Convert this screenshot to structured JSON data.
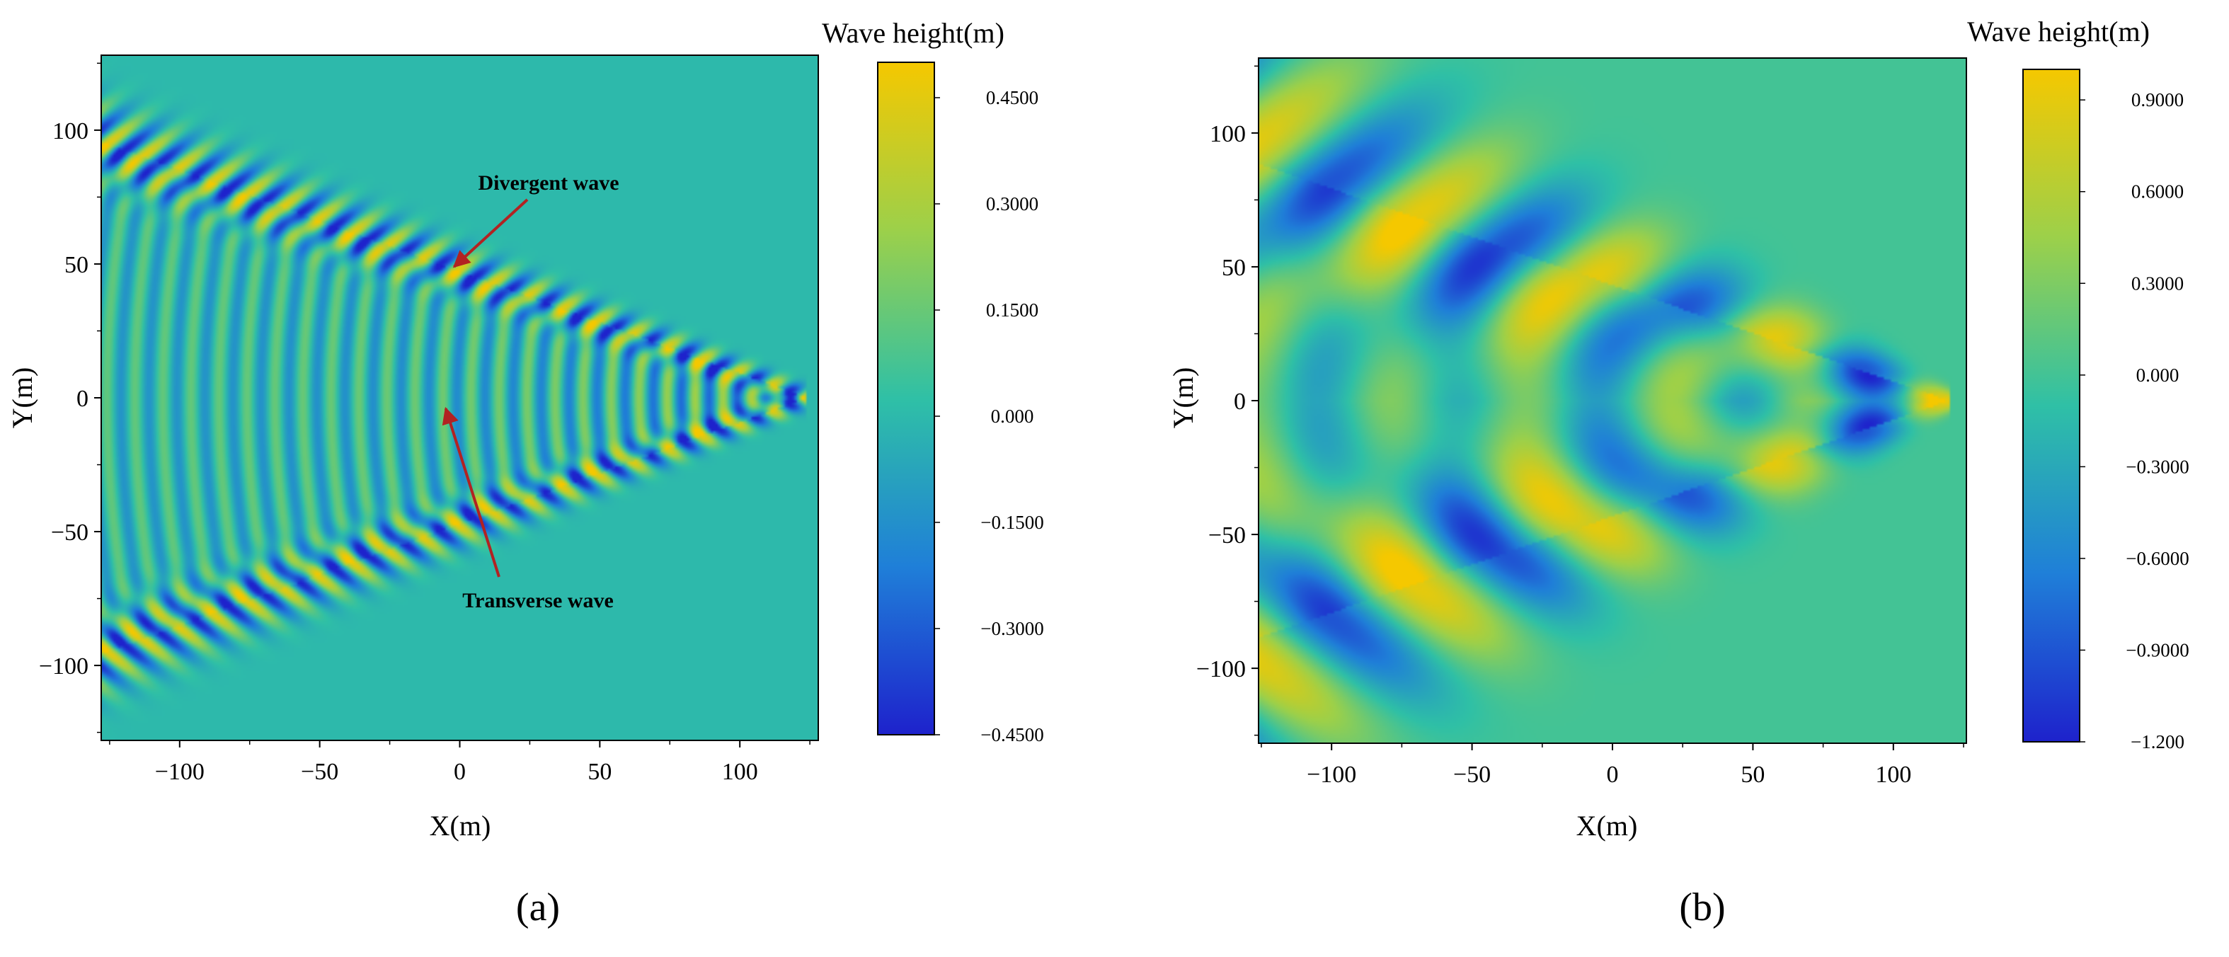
{
  "chart_data": [
    {
      "type": "heatmap",
      "panel_label": "(a)",
      "xlabel": "X(m)",
      "ylabel": "Y(m)",
      "xlim": [
        -128,
        128
      ],
      "ylim": [
        -128,
        128
      ],
      "x_ticks": [
        -100,
        -50,
        0,
        50,
        100
      ],
      "x_tick_labels": [
        "−100",
        "−50",
        "0",
        "50",
        "100"
      ],
      "y_ticks": [
        100,
        50,
        0,
        -50,
        -100
      ],
      "y_tick_labels": [
        "100",
        "50",
        "0",
        "−50",
        "−100"
      ],
      "colorbar": {
        "title": "Wave height(m)",
        "min": -0.45,
        "max": 0.5,
        "ticks": [
          0.45,
          0.3,
          0.15,
          0.0,
          -0.15,
          -0.3,
          -0.45
        ],
        "tick_labels": [
          "0.4500",
          "0.3000",
          "0.1500",
          "0.000",
          "−0.1500",
          "−0.3000",
          "−0.4500"
        ]
      },
      "field": {
        "description": "Kelvin ship wave pattern, wavelength small",
        "source_x": 124,
        "wedge_slope": 0.38,
        "wavelength": 10,
        "amplitude": 0.45
      },
      "annotations": [
        {
          "text": "Divergent wave",
          "target": [
            -2,
            49
          ]
        },
        {
          "text": "Transverse wave",
          "target": [
            -5,
            -4
          ]
        }
      ]
    },
    {
      "type": "heatmap",
      "panel_label": "(b)",
      "xlabel": "X(m)",
      "ylabel": "Y(m)",
      "xlim": [
        -126,
        126
      ],
      "ylim": [
        -128,
        128
      ],
      "x_ticks": [
        -100,
        -50,
        0,
        50,
        100
      ],
      "x_tick_labels": [
        "−100",
        "−50",
        "0",
        "50",
        "100"
      ],
      "y_ticks": [
        100,
        50,
        0,
        -50,
        -100
      ],
      "y_tick_labels": [
        "100",
        "50",
        "0",
        "−50",
        "−100"
      ],
      "colorbar": {
        "title": "Wave height(m)",
        "min": -1.2,
        "max": 1.0,
        "ticks": [
          0.9,
          0.6,
          0.3,
          0.0,
          -0.3,
          -0.6,
          -0.9,
          -1.2
        ],
        "tick_labels": [
          "0.9000",
          "0.6000",
          "0.3000",
          "0.000",
          "−0.3000",
          "−0.6000",
          "−0.9000",
          "−1.200"
        ]
      },
      "field": {
        "description": "Kelvin ship wave pattern, wavelength large",
        "source_x": 120,
        "wedge_slope": 0.36,
        "wavelength": 50,
        "amplitude": 0.9
      },
      "annotations": []
    }
  ],
  "colors": {
    "background": "#ffffff",
    "map_low": "#1e22cc",
    "map_mid": "#2fc0a6",
    "map_high": "#f5c800",
    "arrow": "#b22222"
  }
}
